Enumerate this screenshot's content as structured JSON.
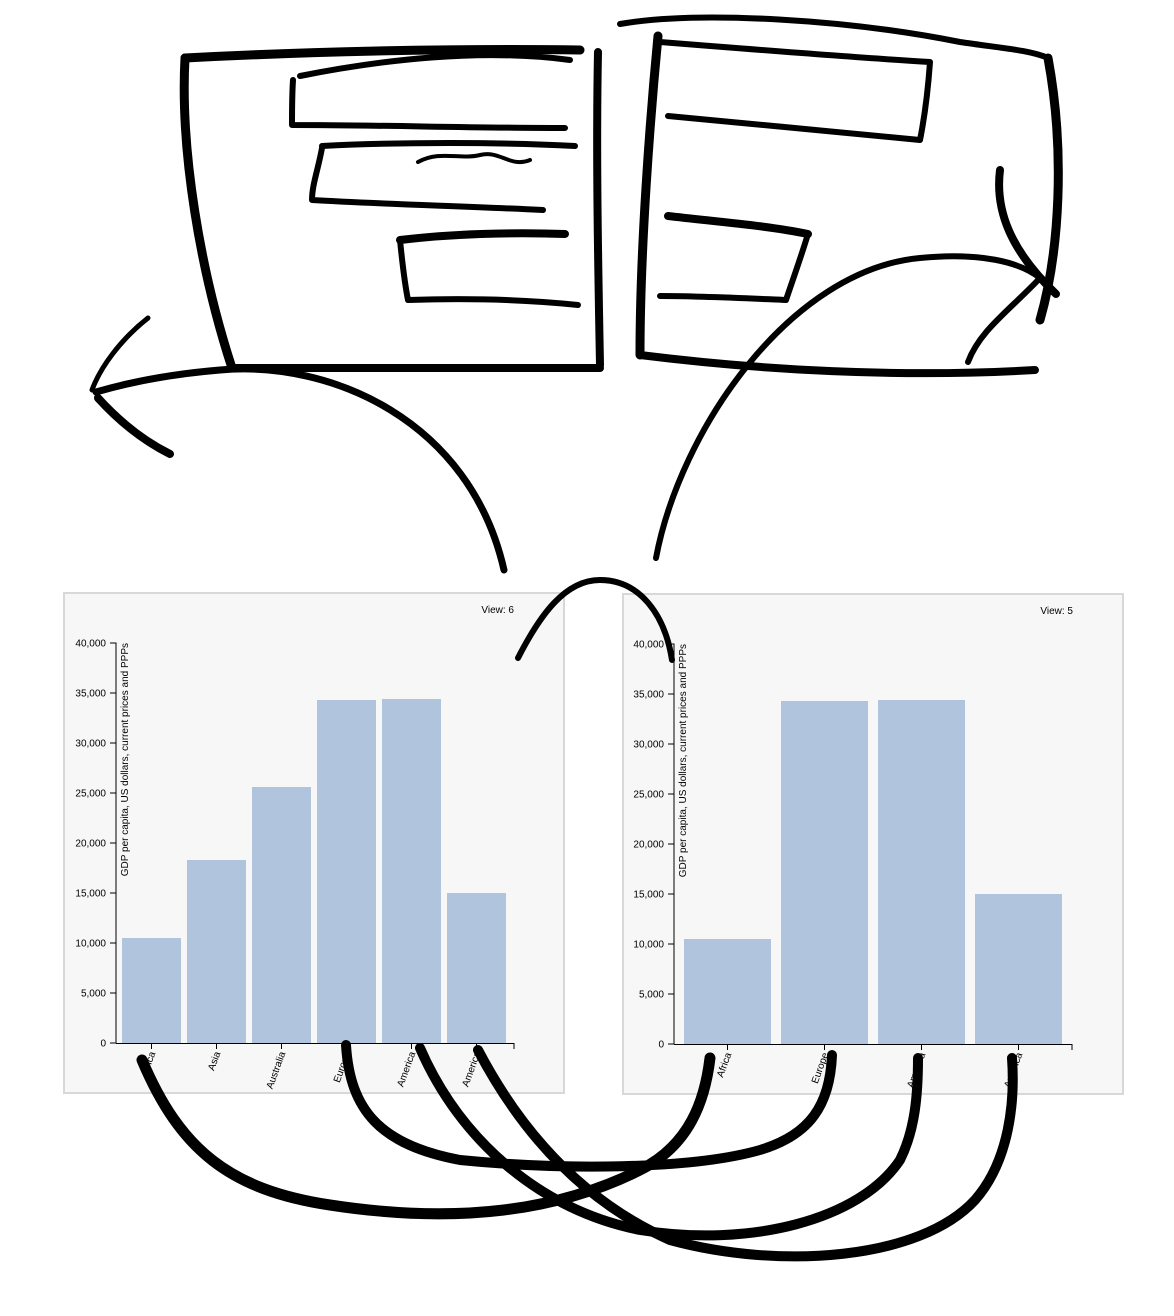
{
  "chart_data": [
    {
      "type": "bar",
      "view_label": "View: 6",
      "ylabel": "GDP per capita, US dollars, current prices and PPPs",
      "xlabel": "",
      "ylim": [
        0,
        40000
      ],
      "yticks": [
        0,
        5000,
        10000,
        15000,
        20000,
        25000,
        30000,
        35000,
        40000
      ],
      "ytick_labels": [
        "0",
        "5,000",
        "10,000",
        "15,000",
        "20,000",
        "25,000",
        "30,000",
        "35,000",
        "40,000"
      ],
      "categories": [
        "Africa",
        "Asia",
        "Australia",
        "Europe",
        "America",
        "America"
      ],
      "values": [
        10500,
        18300,
        25600,
        34300,
        34400,
        15000
      ],
      "grid": false,
      "bar_color": "#b0c4de"
    },
    {
      "type": "bar",
      "view_label": "View: 5",
      "ylabel": "GDP per capita, US dollars, current prices and PPPs",
      "xlabel": "",
      "ylim": [
        0,
        40000
      ],
      "yticks": [
        0,
        5000,
        10000,
        15000,
        20000,
        25000,
        30000,
        35000,
        40000
      ],
      "ytick_labels": [
        "0",
        "5,000",
        "10,000",
        "15,000",
        "20,000",
        "25,000",
        "30,000",
        "35,000",
        "40,000"
      ],
      "categories": [
        "Africa",
        "Europe",
        "America",
        "America"
      ],
      "values": [
        10500,
        34300,
        34400,
        15000
      ],
      "grid": false,
      "bar_color": "#b0c4de"
    }
  ],
  "annotations": {
    "style": "hand-drawn black marker",
    "ink_color": "#000000",
    "content": "sketch of two linked windows above the charts and curved arrows connecting matching category bars between the two charts"
  }
}
